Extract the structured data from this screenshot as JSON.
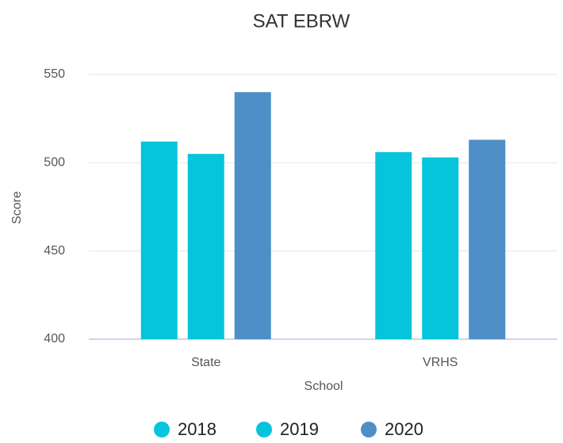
{
  "chart_data": {
    "type": "bar",
    "title": "SAT EBRW",
    "x_label": "School",
    "y_label": "Score",
    "categories": [
      "State",
      "VRHS"
    ],
    "series": [
      {
        "name": "2018",
        "color": "#06c4dc",
        "values": [
          512,
          506
        ]
      },
      {
        "name": "2019",
        "color": "#06c4dc",
        "values": [
          505,
          503
        ]
      },
      {
        "name": "2020",
        "color": "#4d8fc6",
        "values": [
          540,
          513
        ]
      }
    ],
    "ylim": [
      400,
      550
    ],
    "yticks": [
      400,
      450,
      500,
      550
    ],
    "grid": true,
    "legend": "bottom"
  }
}
